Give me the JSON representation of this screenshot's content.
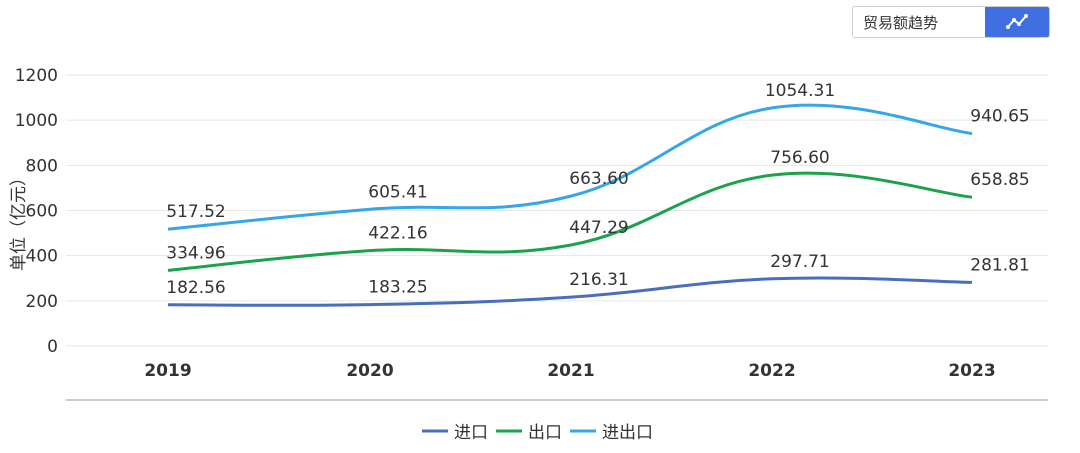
{
  "toggle": {
    "label": "贸易额趋势",
    "icon": "line-chart-icon"
  },
  "chart_data": {
    "type": "line",
    "categories": [
      "2019",
      "2020",
      "2021",
      "2022",
      "2023"
    ],
    "ylabel": "单位（亿元）",
    "ylim": [
      0,
      1200
    ],
    "yticks": [
      0,
      200,
      400,
      600,
      800,
      1000,
      1200
    ],
    "grid": true,
    "legend_position": "bottom",
    "series": [
      {
        "name": "进口",
        "color": "#4a6fba",
        "values": [
          182.56,
          183.25,
          216.31,
          297.71,
          281.81
        ],
        "labels": [
          "182.56",
          "183.25",
          "216.31",
          "297.71",
          "281.81"
        ]
      },
      {
        "name": "出口",
        "color": "#1aa34a",
        "values": [
          334.96,
          422.16,
          447.29,
          756.6,
          658.85
        ],
        "labels": [
          "334.96",
          "422.16",
          "447.29",
          "756.60",
          "658.85"
        ]
      },
      {
        "name": "进出口",
        "color": "#35a6e6",
        "values": [
          517.52,
          605.41,
          663.6,
          1054.31,
          940.65
        ],
        "labels": [
          "517.52",
          "605.41",
          "663.60",
          "1054.31",
          "940.65"
        ]
      }
    ]
  }
}
